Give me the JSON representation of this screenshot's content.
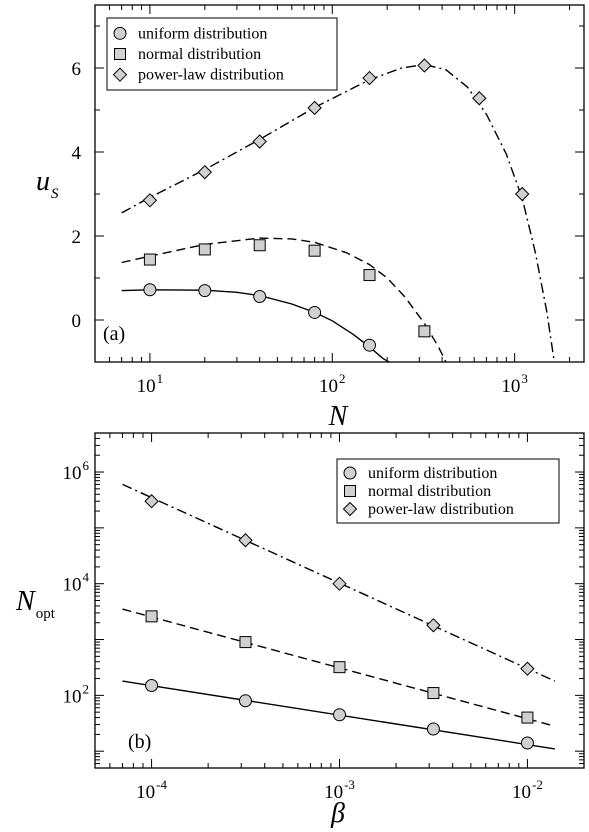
{
  "chart_data": [
    {
      "type": "scatter",
      "panel_label": "(a)",
      "xlabel": "N",
      "ylabel": "u",
      "ylabel_sub": "S",
      "x_scale": "log",
      "xlim": [
        5,
        2400
      ],
      "ylim": [
        -1,
        7.5
      ],
      "x_ticks": [
        {
          "base": "10",
          "exp": "1",
          "value": 10
        },
        {
          "base": "10",
          "exp": "2",
          "value": 100
        },
        {
          "base": "10",
          "exp": "3",
          "value": 1000
        }
      ],
      "y_ticks": [
        {
          "label": "0",
          "value": 0
        },
        {
          "label": "2",
          "value": 2
        },
        {
          "label": "4",
          "value": 4
        },
        {
          "label": "6",
          "value": 6
        }
      ],
      "legend_position": "top-left",
      "series": [
        {
          "name": "uniform distribution",
          "marker": "circle",
          "line": "solid",
          "points": [
            [
              10,
              0.72
            ],
            [
              20,
              0.7
            ],
            [
              40,
              0.56
            ],
            [
              80,
              0.18
            ],
            [
              160,
              -0.6
            ]
          ],
          "curve": [
            [
              7,
              0.7
            ],
            [
              10,
              0.72
            ],
            [
              20,
              0.71
            ],
            [
              30,
              0.66
            ],
            [
              40,
              0.58
            ],
            [
              60,
              0.38
            ],
            [
              80,
              0.18
            ],
            [
              100,
              -0.02
            ],
            [
              130,
              -0.34
            ],
            [
              160,
              -0.64
            ],
            [
              190,
              -0.92
            ],
            [
              205,
              -1.0
            ]
          ]
        },
        {
          "name": "normal distribution",
          "marker": "square",
          "line": "dashed",
          "points": [
            [
              10,
              1.44
            ],
            [
              20,
              1.68
            ],
            [
              40,
              1.78
            ],
            [
              80,
              1.65
            ],
            [
              160,
              1.07
            ],
            [
              320,
              -0.27
            ]
          ],
          "curve": [
            [
              7,
              1.37
            ],
            [
              10,
              1.52
            ],
            [
              20,
              1.8
            ],
            [
              40,
              1.95
            ],
            [
              60,
              1.93
            ],
            [
              80,
              1.85
            ],
            [
              120,
              1.6
            ],
            [
              160,
              1.32
            ],
            [
              200,
              1.0
            ],
            [
              250,
              0.55
            ],
            [
              320,
              -0.08
            ],
            [
              380,
              -0.62
            ],
            [
              420,
              -1.0
            ]
          ]
        },
        {
          "name": "power-law distribution",
          "marker": "diamond",
          "line": "dashdot",
          "points": [
            [
              10,
              2.85
            ],
            [
              20,
              3.52
            ],
            [
              40,
              4.25
            ],
            [
              80,
              5.05
            ],
            [
              160,
              5.76
            ],
            [
              320,
              6.06
            ],
            [
              640,
              5.28
            ],
            [
              1100,
              3.0
            ]
          ],
          "curve": [
            [
              7,
              2.55
            ],
            [
              10,
              2.92
            ],
            [
              20,
              3.58
            ],
            [
              40,
              4.3
            ],
            [
              80,
              5.06
            ],
            [
              160,
              5.72
            ],
            [
              240,
              6.0
            ],
            [
              320,
              6.08
            ],
            [
              420,
              5.96
            ],
            [
              550,
              5.55
            ],
            [
              700,
              4.9
            ],
            [
              900,
              3.95
            ],
            [
              1100,
              2.9
            ],
            [
              1300,
              1.6
            ],
            [
              1500,
              0.2
            ],
            [
              1650,
              -1.0
            ]
          ]
        }
      ]
    },
    {
      "type": "scatter",
      "panel_label": "(b)",
      "xlabel": "β",
      "ylabel": "N",
      "ylabel_sub": "opt",
      "x_scale": "log",
      "y_scale": "log",
      "xlim": [
        5e-05,
        0.02
      ],
      "ylim": [
        5,
        5000000
      ],
      "x_ticks": [
        {
          "base": "10",
          "exp": "-4",
          "value": 0.0001
        },
        {
          "base": "10",
          "exp": "-3",
          "value": 0.001
        },
        {
          "base": "10",
          "exp": "-2",
          "value": 0.01
        }
      ],
      "y_ticks": [
        {
          "base": "10",
          "exp": "2",
          "value": 100
        },
        {
          "base": "10",
          "exp": "4",
          "value": 10000
        },
        {
          "base": "10",
          "exp": "6",
          "value": 1000000
        }
      ],
      "legend_position": "top-right",
      "series": [
        {
          "name": "uniform distribution",
          "marker": "circle",
          "line": "solid",
          "points": [
            [
              0.0001,
              150
            ],
            [
              0.000316,
              80
            ],
            [
              0.001,
              45
            ],
            [
              0.00316,
              25
            ],
            [
              0.01,
              14
            ]
          ],
          "curve": [
            [
              7e-05,
              180
            ],
            [
              0.014,
              11
            ]
          ]
        },
        {
          "name": "normal distribution",
          "marker": "square",
          "line": "dashed",
          "points": [
            [
              0.0001,
              2600
            ],
            [
              0.000316,
              900
            ],
            [
              0.001,
              320
            ],
            [
              0.00316,
              110
            ],
            [
              0.01,
              40
            ]
          ],
          "curve": [
            [
              7e-05,
              3500
            ],
            [
              0.014,
              28
            ]
          ]
        },
        {
          "name": "power-law distribution",
          "marker": "diamond",
          "line": "dashdot",
          "points": [
            [
              0.0001,
              300000
            ],
            [
              0.000316,
              60000
            ],
            [
              0.001,
              10000
            ],
            [
              0.00316,
              1800
            ],
            [
              0.01,
              300
            ]
          ],
          "curve": [
            [
              7e-05,
              600000
            ],
            [
              0.014,
              180
            ]
          ]
        }
      ]
    }
  ]
}
